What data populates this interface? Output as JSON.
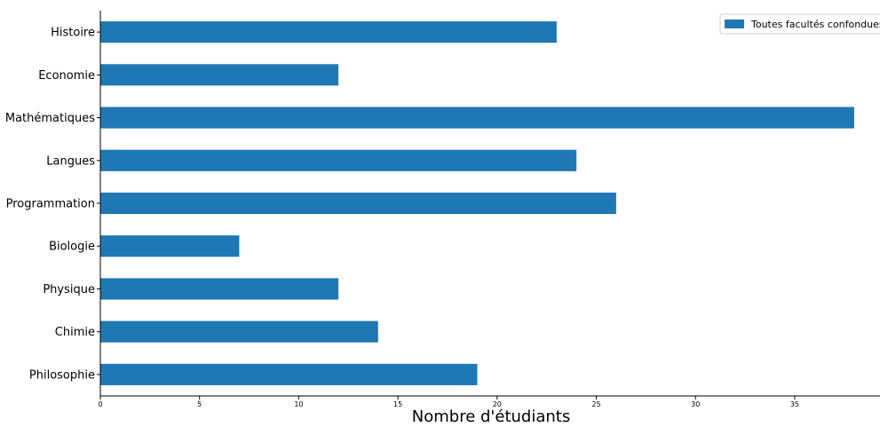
{
  "chart_data": {
    "type": "bar",
    "orientation": "horizontal",
    "categories": [
      "Histoire",
      "Economie",
      "Mathématiques",
      "Langues",
      "Programmation",
      "Biologie",
      "Physique",
      "Chimie",
      "Philosophie"
    ],
    "series": [
      {
        "name": "Toutes facultés confondues",
        "values": [
          23,
          12,
          38,
          24,
          26,
          7,
          12,
          14,
          19
        ],
        "color": "#1f77b4"
      }
    ],
    "xlabel": "Nombre d'étudiants",
    "ylabel": "",
    "xlim": [
      0,
      39.3
    ],
    "xticks": [
      0,
      5,
      10,
      15,
      20,
      25,
      30,
      35
    ],
    "grid": false,
    "legend": "top-right"
  }
}
